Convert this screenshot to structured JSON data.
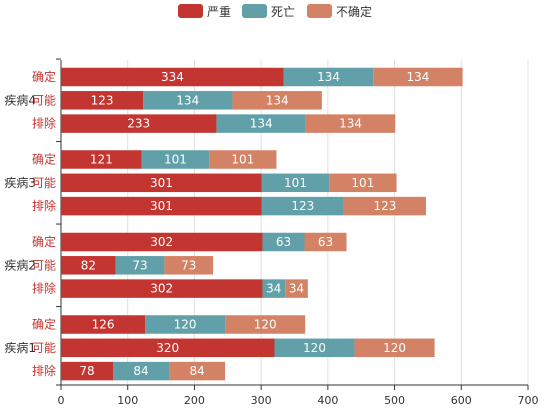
{
  "colors": {
    "严重": "#c23531",
    "死亡": "#61a0a8",
    "不确定": "#d48265"
  },
  "chart_data": {
    "type": "bar",
    "orientation": "horizontal",
    "stacked": true,
    "legend": {
      "position": "top-center",
      "entries": [
        "严重",
        "死亡",
        "不确定"
      ]
    },
    "xlim": [
      0,
      700
    ],
    "xticks": [
      0,
      100,
      200,
      300,
      400,
      500,
      600,
      700
    ],
    "grid": true,
    "categories": [
      "确定",
      "可能",
      "排除"
    ],
    "groups": [
      {
        "label": "疾病4",
        "rows": [
          {
            "category": "确定",
            "values": [
              334,
              134,
              134
            ]
          },
          {
            "category": "可能",
            "values": [
              123,
              134,
              134
            ]
          },
          {
            "category": "排除",
            "values": [
              233,
              134,
              134
            ]
          }
        ]
      },
      {
        "label": "疾病3",
        "rows": [
          {
            "category": "确定",
            "values": [
              121,
              101,
              101
            ]
          },
          {
            "category": "可能",
            "values": [
              301,
              101,
              101
            ]
          },
          {
            "category": "排除",
            "values": [
              301,
              123,
              123
            ]
          }
        ]
      },
      {
        "label": "疾病2",
        "rows": [
          {
            "category": "确定",
            "values": [
              302,
              63,
              63
            ]
          },
          {
            "category": "可能",
            "values": [
              82,
              73,
              73
            ]
          },
          {
            "category": "排除",
            "values": [
              302,
              34,
              34
            ]
          }
        ]
      },
      {
        "label": "疾病1",
        "rows": [
          {
            "category": "确定",
            "values": [
              126,
              120,
              120
            ]
          },
          {
            "category": "可能",
            "values": [
              320,
              120,
              120
            ]
          },
          {
            "category": "排除",
            "values": [
              78,
              84,
              84
            ]
          }
        ]
      }
    ],
    "series": [
      {
        "name": "严重"
      },
      {
        "name": "死亡"
      },
      {
        "name": "不确定"
      }
    ]
  }
}
